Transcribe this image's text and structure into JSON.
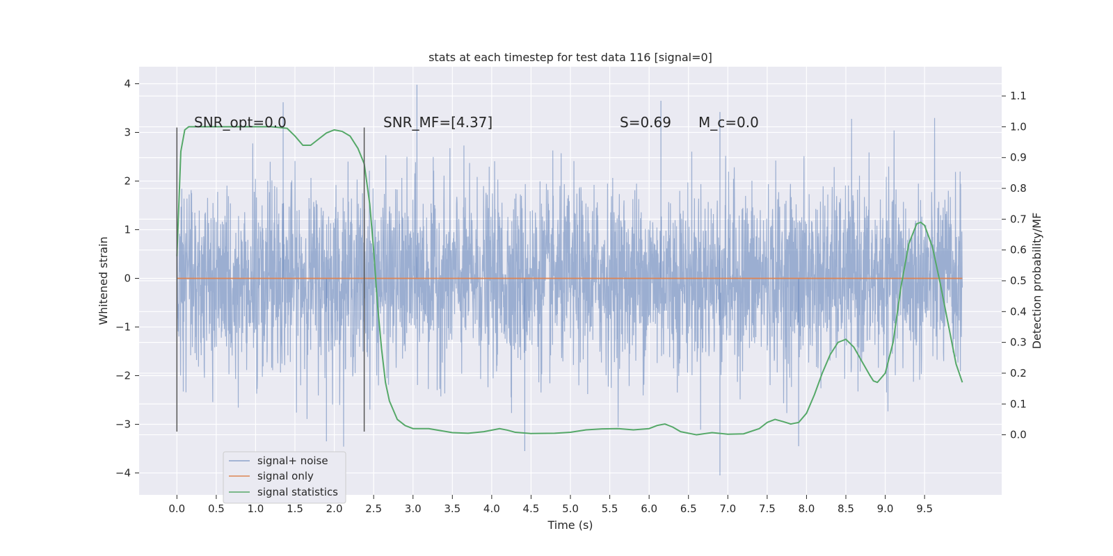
{
  "chart_data": {
    "type": "line",
    "title": "stats at each timestep for test data 116 [signal=0]",
    "xlabel": "Time (s)",
    "ylabel_left": "Whitened strain",
    "ylabel_right": "Detection probability/MF",
    "xlim": [
      -0.48,
      10.48
    ],
    "ylim_left": [
      -4.45,
      4.35
    ],
    "ylim_right": [
      -0.195,
      1.195
    ],
    "xticks": [
      0.0,
      0.5,
      1.0,
      1.5,
      2.0,
      2.5,
      3.0,
      3.5,
      4.0,
      4.5,
      5.0,
      5.5,
      6.0,
      6.5,
      7.0,
      7.5,
      8.0,
      8.5,
      9.0,
      9.5
    ],
    "yticks_left": [
      -4,
      -3,
      -2,
      -1,
      0,
      1,
      2,
      3,
      4
    ],
    "yticks_right": [
      0.0,
      0.1,
      0.2,
      0.3,
      0.4,
      0.5,
      0.6,
      0.7,
      0.8,
      0.9,
      1.0,
      1.1
    ],
    "grid": true,
    "legend_position": "lower-left",
    "annotations": {
      "snr_opt": "SNR_opt=0.0",
      "snr_mf": "SNR_MF=[4.37]",
      "s": "S=0.69",
      "mc": "M_c=0.0"
    },
    "vlines": [
      0.0,
      2.38
    ],
    "vline_ylim": [
      -3.15,
      3.1
    ],
    "series": [
      {
        "name": "signal+ noise",
        "axis": "left",
        "color": "#4c72b0",
        "x_range": [
          0.0,
          9.98
        ],
        "typical_range": [
          -1.35,
          1.25
        ],
        "envelope_range": [
          -4.05,
          3.98
        ],
        "note_values": {
          "peaks": [
            {
              "x": 1.35,
              "y": 3.62
            },
            {
              "x": 3.05,
              "y": 3.98
            },
            {
              "x": 6.15,
              "y": 3.65
            },
            {
              "x": 6.9,
              "y": 3.42
            },
            {
              "x": 6.9,
              "y": -4.05
            },
            {
              "x": 4.42,
              "y": -3.55
            },
            {
              "x": 7.9,
              "y": -3.45
            },
            {
              "x": 1.9,
              "y": -3.35
            }
          ]
        }
      },
      {
        "name": "signal only",
        "axis": "left",
        "color": "#dd8452",
        "x": [
          0.0,
          9.98
        ],
        "y": [
          0.0,
          0.0
        ]
      },
      {
        "name": "signal statistics",
        "axis": "right",
        "color": "#55a868",
        "x": [
          0.0,
          0.05,
          0.1,
          0.15,
          0.2,
          0.3,
          0.5,
          0.8,
          1.0,
          1.2,
          1.4,
          1.5,
          1.6,
          1.7,
          1.8,
          1.9,
          2.0,
          2.1,
          2.2,
          2.3,
          2.38,
          2.45,
          2.5,
          2.55,
          2.6,
          2.65,
          2.7,
          2.8,
          2.9,
          3.0,
          3.2,
          3.5,
          3.7,
          3.9,
          4.1,
          4.2,
          4.3,
          4.5,
          4.8,
          5.0,
          5.2,
          5.4,
          5.6,
          5.8,
          6.0,
          6.1,
          6.2,
          6.3,
          6.4,
          6.6,
          6.8,
          7.0,
          7.2,
          7.4,
          7.5,
          7.6,
          7.7,
          7.8,
          7.9,
          8.0,
          8.1,
          8.2,
          8.3,
          8.4,
          8.5,
          8.6,
          8.7,
          8.8,
          8.85,
          8.9,
          9.0,
          9.1,
          9.2,
          9.3,
          9.4,
          9.45,
          9.5,
          9.6,
          9.7,
          9.8,
          9.9,
          9.98
        ],
        "y": [
          0.58,
          0.92,
          0.99,
          1.0,
          1.0,
          1.0,
          1.0,
          1.0,
          1.0,
          1.0,
          0.995,
          0.97,
          0.94,
          0.94,
          0.96,
          0.98,
          0.99,
          0.985,
          0.97,
          0.93,
          0.88,
          0.75,
          0.6,
          0.42,
          0.28,
          0.17,
          0.11,
          0.05,
          0.03,
          0.02,
          0.02,
          0.007,
          0.005,
          0.01,
          0.02,
          0.015,
          0.008,
          0.004,
          0.005,
          0.008,
          0.016,
          0.019,
          0.02,
          0.016,
          0.02,
          0.03,
          0.035,
          0.025,
          0.01,
          0.0,
          0.007,
          0.002,
          0.003,
          0.02,
          0.04,
          0.05,
          0.043,
          0.035,
          0.04,
          0.07,
          0.13,
          0.2,
          0.26,
          0.3,
          0.31,
          0.285,
          0.24,
          0.195,
          0.175,
          0.17,
          0.2,
          0.3,
          0.48,
          0.62,
          0.685,
          0.69,
          0.68,
          0.61,
          0.49,
          0.36,
          0.23,
          0.17
        ]
      }
    ]
  }
}
